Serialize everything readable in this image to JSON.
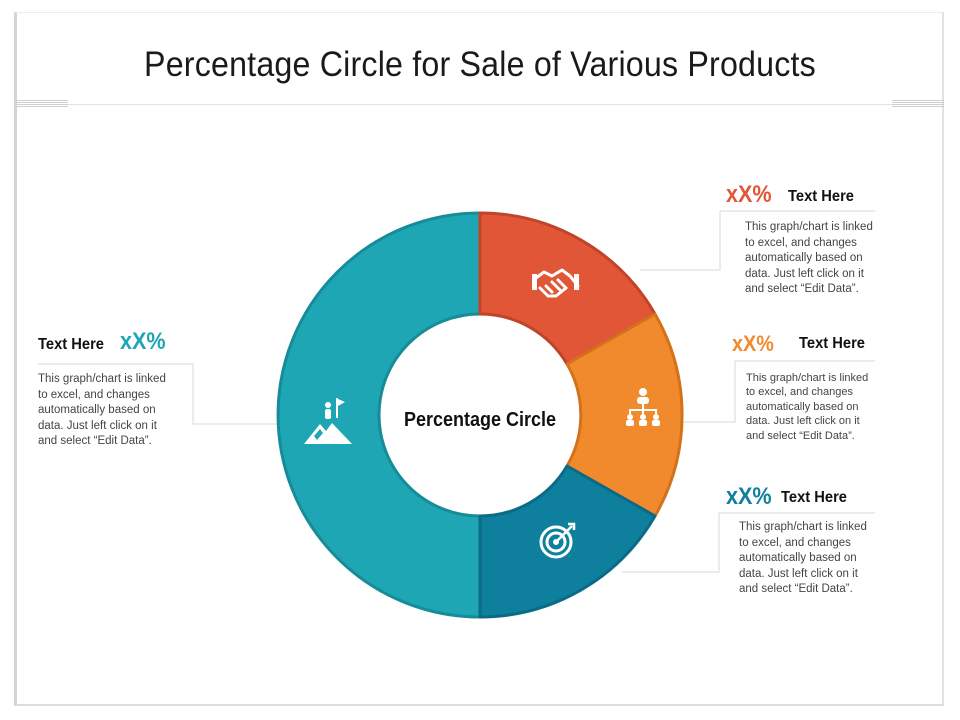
{
  "title": "Percentage Circle for Sale of Various Products",
  "center_label": "Percentage Circle",
  "colors": {
    "teal": "#1ea6b5",
    "red": "#e15636",
    "orange": "#f08a2c",
    "dark_teal": "#0f7f9e"
  },
  "callouts": {
    "left": {
      "heading": "Text Here",
      "percent": "xX%",
      "body": "This graph/chart is linked\nto excel, and changes\nautomatically  based on\ndata. Just left click on it\nand select “Edit Data”.",
      "icon": "mountain-flag-icon"
    },
    "right_top": {
      "heading": "Text Here",
      "percent": "xX%",
      "body": "This graph/chart is linked\nto excel, and changes\nautomatically based on\ndata. Just left click on it\nand select “Edit Data”.",
      "icon": "handshake-icon"
    },
    "right_mid": {
      "heading": "Text Here",
      "percent": "xX%",
      "body": "This graph/chart is linked\nto excel, and changes\nautomatically  based on\ndata. Just left click on it\nand select “Edit Data”.",
      "icon": "org-chart-icon"
    },
    "right_bottom": {
      "heading": "Text Here",
      "percent": "xX%",
      "body": "This graph/chart is linked\nto excel, and changes\nautomatically based on\ndata. Just left click on it\nand select “Edit Data”.",
      "icon": "target-icon"
    }
  }
}
